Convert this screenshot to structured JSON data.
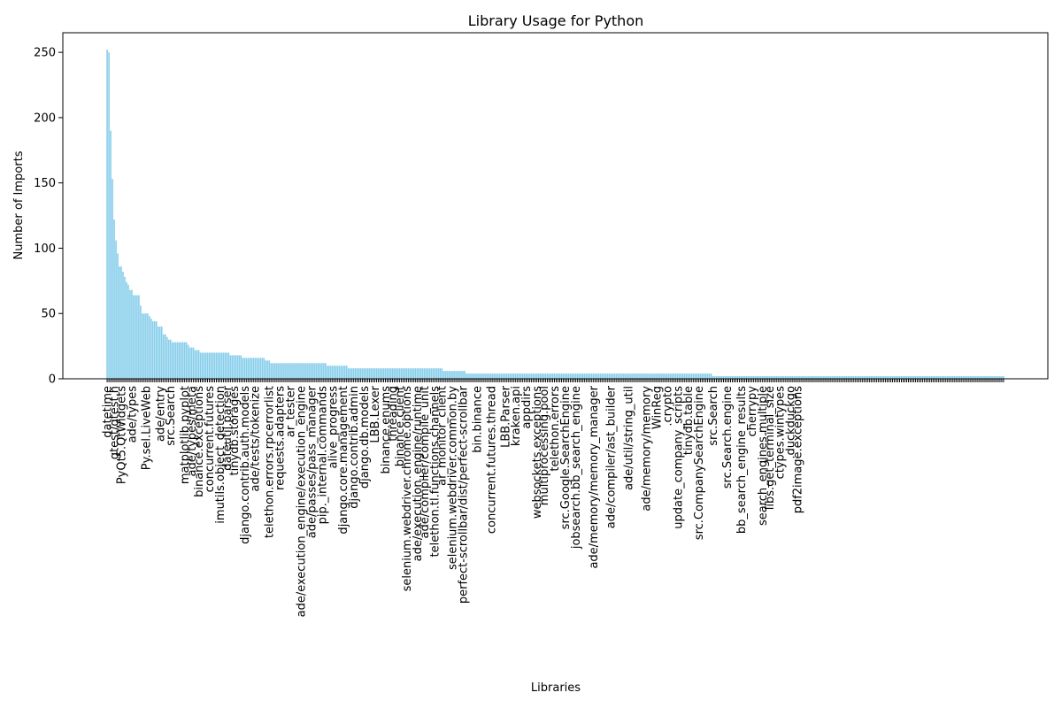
{
  "chart_data": {
    "type": "bar",
    "title": "Library Usage for Python",
    "xlabel": "Libraries",
    "ylabel": "Number of Imports",
    "ylim": [
      0,
      265
    ],
    "yticks": [
      0,
      50,
      100,
      150,
      200,
      250
    ],
    "bar_color": "#87ceeb",
    "grid": false,
    "values": [
      252,
      250,
      190,
      153,
      122,
      106,
      96,
      86,
      86,
      82,
      78,
      74,
      72,
      68,
      68,
      64,
      64,
      64,
      64,
      56,
      50,
      50,
      50,
      50,
      48,
      46,
      44,
      44,
      44,
      40,
      40,
      40,
      34,
      34,
      32,
      30,
      30,
      28,
      28,
      28,
      28,
      28,
      28,
      28,
      28,
      28,
      26,
      24,
      24,
      24,
      22,
      22,
      22,
      20,
      20,
      20,
      20,
      20,
      20,
      20,
      20,
      20,
      20,
      20,
      20,
      20,
      20,
      20,
      20,
      20,
      18,
      18,
      18,
      18,
      18,
      18,
      18,
      16,
      16,
      16,
      16,
      16,
      16,
      16,
      16,
      16,
      16,
      16,
      16,
      16,
      14,
      14,
      14,
      12,
      12,
      12,
      12,
      12,
      12,
      12,
      12,
      12,
      12,
      12,
      12,
      12,
      12,
      12,
      12,
      12,
      12,
      12,
      12,
      12,
      12,
      12,
      12,
      12,
      12,
      12,
      12,
      12,
      12,
      12,
      12,
      10,
      10,
      10,
      10,
      10,
      10,
      10,
      10,
      10,
      10,
      10,
      10,
      8,
      8,
      8,
      8,
      8,
      8,
      8,
      8,
      8,
      8,
      8,
      8,
      8,
      8,
      8,
      8,
      8,
      8,
      8,
      8,
      8,
      8,
      8,
      8,
      8,
      8,
      8,
      8,
      8,
      8,
      8,
      8,
      8,
      8,
      8,
      8,
      8,
      8,
      8,
      8,
      8,
      8,
      8,
      8,
      8,
      8,
      8,
      8,
      8,
      8,
      8,
      8,
      8,
      8,
      6,
      6,
      6,
      6,
      6,
      6,
      6,
      6,
      6,
      6,
      6,
      6,
      6,
      4,
      4,
      4,
      4,
      4,
      4,
      4,
      4,
      4,
      4,
      4,
      4,
      4,
      4,
      4,
      4,
      4,
      4,
      4,
      4,
      4,
      4,
      4,
      4,
      4,
      4,
      4,
      4,
      4,
      4,
      4,
      4,
      4,
      4,
      4,
      4,
      4,
      4,
      4,
      4,
      4,
      4,
      4,
      4,
      4,
      4,
      4,
      4,
      4,
      4,
      4,
      4,
      4,
      4,
      4,
      4,
      4,
      4,
      4,
      4,
      4,
      4,
      4,
      4,
      4,
      4,
      4,
      4,
      4,
      4,
      4,
      4,
      4,
      4,
      4,
      4,
      4,
      4,
      4,
      4,
      4,
      4,
      4,
      4,
      4,
      4,
      4,
      4,
      4,
      4,
      4,
      4,
      4,
      4,
      4,
      4,
      4,
      4,
      4,
      4,
      4,
      4,
      4,
      4,
      4,
      4,
      4,
      4,
      4,
      4,
      4,
      4,
      4,
      4,
      4,
      4,
      4,
      4,
      4,
      4,
      4,
      4,
      4,
      4,
      4,
      4,
      4,
      4,
      4,
      4,
      4,
      4,
      4,
      4,
      4,
      4,
      4,
      4,
      4,
      4,
      2,
      2,
      2,
      2,
      2,
      2,
      2,
      2,
      2,
      2,
      2,
      2,
      2,
      2,
      2,
      2,
      2,
      2,
      2,
      2,
      2,
      2,
      2,
      2,
      2,
      2,
      2,
      2,
      2,
      2,
      2,
      2,
      2,
      2,
      2,
      2,
      2,
      2,
      2,
      2,
      2,
      2,
      2,
      2,
      2,
      2,
      2,
      2,
      2,
      2,
      2,
      2,
      2,
      2,
      2,
      2,
      2,
      2,
      2,
      2,
      2,
      2,
      2,
      2,
      2,
      2,
      2,
      2,
      2,
      2,
      2,
      2,
      2,
      2,
      2,
      2,
      2,
      2,
      2,
      2,
      2,
      2,
      2,
      2,
      2,
      2,
      2,
      2,
      2,
      2,
      2,
      2,
      2,
      2,
      2,
      2,
      2,
      2,
      2,
      2,
      2,
      2,
      2,
      2,
      2,
      2,
      2,
      2,
      2,
      2,
      2,
      2,
      2,
      2,
      2,
      2,
      2,
      2,
      2,
      2,
      2,
      2,
      2,
      2,
      2,
      2,
      2,
      2,
      2,
      2,
      2,
      2,
      2,
      2,
      2,
      2,
      2,
      2,
      2,
      2,
      2,
      2,
      2,
      2,
      2,
      2,
      2,
      2,
      2,
      2,
      2,
      2,
      2,
      2,
      2,
      2,
      2,
      2,
      2,
      2,
      2,
      2,
      2,
      2,
      2,
      2
    ],
    "visible_tick_labels": [
      {
        "index": 0,
        "text": "datetime"
      },
      {
        "index": 4,
        "text": "gtest/gtest.h"
      },
      {
        "index": 8,
        "text": "PyQt5.QtWidgets"
      },
      {
        "index": 14,
        "text": "ade/types"
      },
      {
        "index": 22,
        "text": "Py.sel.LiveWeb"
      },
      {
        "index": 30,
        "text": "ade/entry"
      },
      {
        "index": 36,
        "text": "src.Search"
      },
      {
        "index": 44,
        "text": "matplotlib.pyplot"
      },
      {
        "index": 48,
        "text": "ade/types/meta"
      },
      {
        "index": 52,
        "text": "binance.exceptions"
      },
      {
        "index": 58,
        "text": "concurrent.futures"
      },
      {
        "index": 64,
        "text": "imutils.object_detection"
      },
      {
        "index": 68,
        "text": "dateutil.parser"
      },
      {
        "index": 72,
        "text": "tinydb.storages"
      },
      {
        "index": 78,
        "text": "django.contrib.auth.models"
      },
      {
        "index": 84,
        "text": "ade/tests/tokenize"
      },
      {
        "index": 92,
        "text": "telethon.errors.rpcerrorlist"
      },
      {
        "index": 98,
        "text": "requests.adapters"
      },
      {
        "index": 104,
        "text": "ar_tester"
      },
      {
        "index": 110,
        "text": "ade/execution_engine/execution_engine"
      },
      {
        "index": 116,
        "text": "ade/passes/pass_manager"
      },
      {
        "index": 122,
        "text": "pip._internal.commands"
      },
      {
        "index": 128,
        "text": "alive_progress"
      },
      {
        "index": 134,
        "text": "django.core.management"
      },
      {
        "index": 140,
        "text": "django.contrib.admin"
      },
      {
        "index": 146,
        "text": "django.db.models"
      },
      {
        "index": 152,
        "text": "LBB.Lexer"
      },
      {
        "index": 158,
        "text": "binance.enums"
      },
      {
        "index": 162,
        "text": "threading"
      },
      {
        "index": 166,
        "text": "binance.client"
      },
      {
        "index": 170,
        "text": "selenium.webdriver.chrome.options"
      },
      {
        "index": 176,
        "text": "ade/execution_engine/runtime"
      },
      {
        "index": 180,
        "text": "ade/compiler/compile_unit"
      },
      {
        "index": 186,
        "text": "telethon.tl.functions.channels"
      },
      {
        "index": 190,
        "text": "ar_monitor_client"
      },
      {
        "index": 196,
        "text": "selenium.webdriver.common.by"
      },
      {
        "index": 202,
        "text": "perfect-scrollbar/dist/perfect-scrollbar"
      },
      {
        "index": 210,
        "text": "bin.binance"
      },
      {
        "index": 218,
        "text": "concurrent.futures.thread"
      },
      {
        "index": 226,
        "text": "LBB.Parser"
      },
      {
        "index": 232,
        "text": "kraken.api"
      },
      {
        "index": 238,
        "text": "appdirs"
      },
      {
        "index": 244,
        "text": "websockets.exceptions"
      },
      {
        "index": 248,
        "text": "multiprocessing.pool"
      },
      {
        "index": 254,
        "text": "telethon.errors"
      },
      {
        "index": 260,
        "text": "src.Google.SearchEngine"
      },
      {
        "index": 266,
        "text": "jobsearch.bb_search_engine"
      },
      {
        "index": 276,
        "text": "ade/memory/memory_manager"
      },
      {
        "index": 286,
        "text": "ade/compiler/ast_builder"
      },
      {
        "index": 296,
        "text": "ade/util/string_util"
      },
      {
        "index": 306,
        "text": "ade/memory/memory"
      },
      {
        "index": 312,
        "text": "WinReg"
      },
      {
        "index": 318,
        "text": ".crypto"
      },
      {
        "index": 324,
        "text": "update_company_scripts"
      },
      {
        "index": 330,
        "text": "tinydb.table"
      },
      {
        "index": 336,
        "text": "src.CompanySearchEngine"
      },
      {
        "index": 344,
        "text": "src.Search"
      },
      {
        "index": 352,
        "text": "src.Search.engine"
      },
      {
        "index": 360,
        "text": "bb_search_engine_results"
      },
      {
        "index": 366,
        "text": "cherrypy"
      },
      {
        "index": 372,
        "text": "search_engines.multiple"
      },
      {
        "index": 376,
        "text": "libs.get_terminal_size"
      },
      {
        "index": 382,
        "text": "ctypes.wintypes"
      },
      {
        "index": 388,
        "text": ".duckduckgo"
      },
      {
        "index": 392,
        "text": "pdf2image.exceptions"
      }
    ]
  }
}
